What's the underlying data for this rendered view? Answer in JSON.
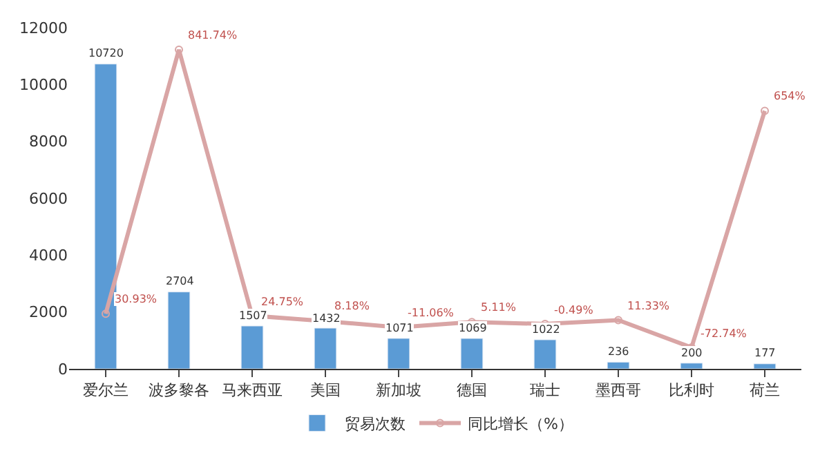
{
  "chart_data": {
    "type": "bar",
    "categories": [
      "爱尔兰",
      "波多黎各",
      "马来西亚",
      "美国",
      "新加坡",
      "德国",
      "瑞士",
      "墨西哥",
      "比利时",
      "荷兰"
    ],
    "series": [
      {
        "name": "贸易次数",
        "color": "#5b9bd5",
        "values": [
          10720,
          2704,
          1507,
          1432,
          1071,
          1069,
          1022,
          236,
          200,
          177
        ],
        "data_labels": true
      },
      {
        "name": "同比增长（%）",
        "type": "line",
        "axis": "y2",
        "color": "#d9a5a5",
        "marker": "circle",
        "values": [
          30.93,
          841.74,
          24.75,
          8.18,
          -11.06,
          5.11,
          -0.49,
          11.33,
          -72.74,
          654
        ],
        "value_labels": [
          "30.93%",
          "841.74%",
          "24.75%",
          "8.18%",
          "-11.06%",
          "5.11%",
          "-0.49%",
          "11.33%",
          "-72.74%",
          "654%"
        ]
      }
    ],
    "ylim": [
      0,
      12000
    ],
    "yticks": [
      0,
      2000,
      4000,
      6000,
      8000,
      10000,
      12000
    ],
    "legend": "bottom"
  }
}
